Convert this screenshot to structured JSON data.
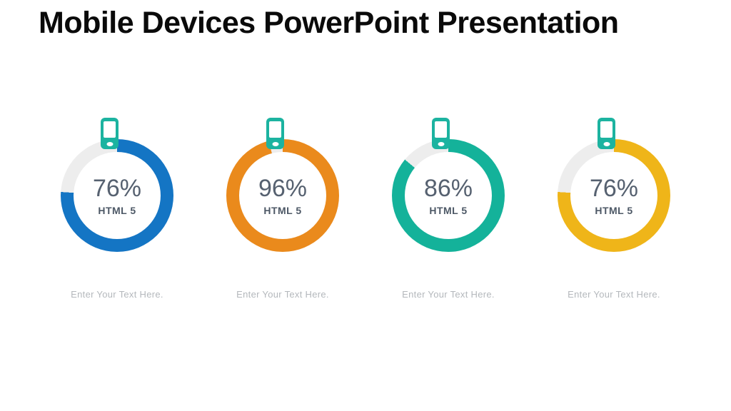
{
  "title": "Mobile Devices PowerPoint Presentation",
  "colors": {
    "title_text": "#0a0a0a",
    "percent_text": "#566170",
    "label_text": "#4d5866",
    "caption_text": "#b4b8bc",
    "track": "#ededed",
    "phone": "#1cb3a0"
  },
  "cards": [
    {
      "percent": 76,
      "percent_label": "76%",
      "tech_label": "HTML 5",
      "caption": "Enter Your Text Here.",
      "ring_color": "#1475c4",
      "color_name": "blue"
    },
    {
      "percent": 96,
      "percent_label": "96%",
      "tech_label": "HTML 5",
      "caption": "Enter Your Text Here.",
      "ring_color": "#ea8a1c",
      "color_name": "orange"
    },
    {
      "percent": 86,
      "percent_label": "86%",
      "tech_label": "HTML 5",
      "caption": "Enter Your Text Here.",
      "ring_color": "#14b29a",
      "color_name": "teal"
    },
    {
      "percent": 76,
      "percent_label": "76%",
      "tech_label": "HTML 5",
      "caption": "Enter Your Text Here.",
      "ring_color": "#efb519",
      "color_name": "yellow"
    }
  ],
  "chart_data": {
    "type": "pie",
    "variant": "donut_progress_gauges",
    "title": "Mobile Devices PowerPoint Presentation",
    "categories": [
      "Gauge 1 (blue)",
      "Gauge 2 (orange)",
      "Gauge 3 (teal)",
      "Gauge 4 (yellow)"
    ],
    "values": [
      76,
      96,
      86,
      76
    ],
    "labels": [
      "HTML 5",
      "HTML 5",
      "HTML 5",
      "HTML 5"
    ],
    "colors": [
      "#1475c4",
      "#ea8a1c",
      "#14b29a",
      "#efb519"
    ],
    "track_color": "#ededed",
    "start_angle_deg": 0,
    "direction": "clockwise",
    "legend": "none"
  }
}
